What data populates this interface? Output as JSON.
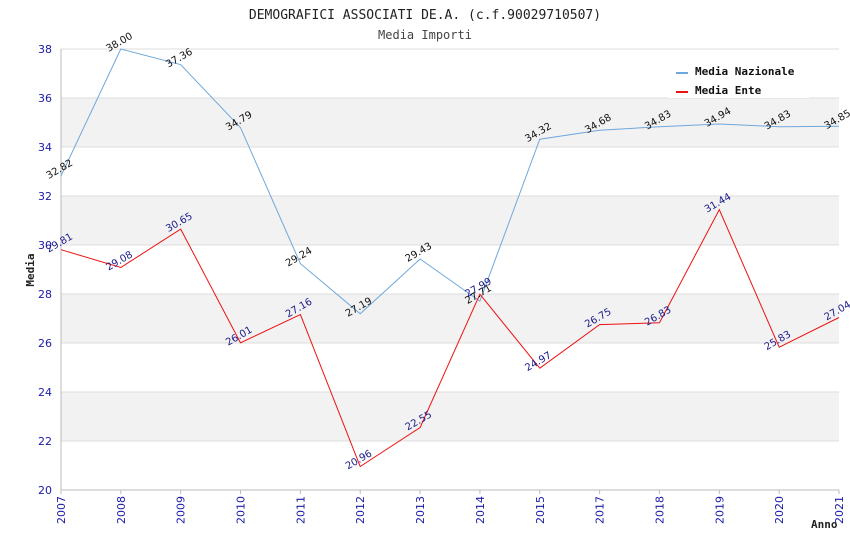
{
  "chart_data": {
    "type": "line",
    "title": "DEMOGRAFICI ASSOCIATI DE.A. (c.f.90029710507)",
    "subtitle": "Media Importi",
    "xlabel": "Anno",
    "ylabel": "Media",
    "ylim": [
      20,
      38
    ],
    "yticks": [
      "20",
      "22",
      "24",
      "26",
      "28",
      "30",
      "32",
      "34",
      "36",
      "38"
    ],
    "categories": [
      "2007",
      "2008",
      "2009",
      "2010",
      "2011",
      "2012",
      "2013",
      "2014",
      "2015",
      "2017",
      "2018",
      "2019",
      "2020",
      "2021"
    ],
    "series": [
      {
        "name": "Media Nazionale",
        "color": "#6fa8dc",
        "values": [
          32.82,
          38.0,
          37.36,
          34.79,
          29.24,
          27.19,
          29.43,
          27.71,
          34.32,
          34.68,
          34.83,
          34.94,
          34.83,
          34.85
        ],
        "labels": [
          "32.82",
          "38.00",
          "37.36",
          "34.79",
          "29.24",
          "27.19",
          "29.43",
          "27.71",
          "34.32",
          "34.68",
          "34.83",
          "34.94",
          "34.83",
          "34.85"
        ]
      },
      {
        "name": "Media Ente",
        "color": "#ee1111",
        "values": [
          29.81,
          29.08,
          30.65,
          26.01,
          27.16,
          20.96,
          22.55,
          27.99,
          24.97,
          26.75,
          26.83,
          31.44,
          25.83,
          27.04
        ],
        "labels": [
          "29.81",
          "29.08",
          "30.65",
          "26.01",
          "27.16",
          "20.96",
          "22.55",
          "27.99",
          "24.97",
          "26.75",
          "26.83",
          "31.44",
          "25.83",
          "27.04"
        ]
      }
    ],
    "legend_position": "top-right"
  }
}
